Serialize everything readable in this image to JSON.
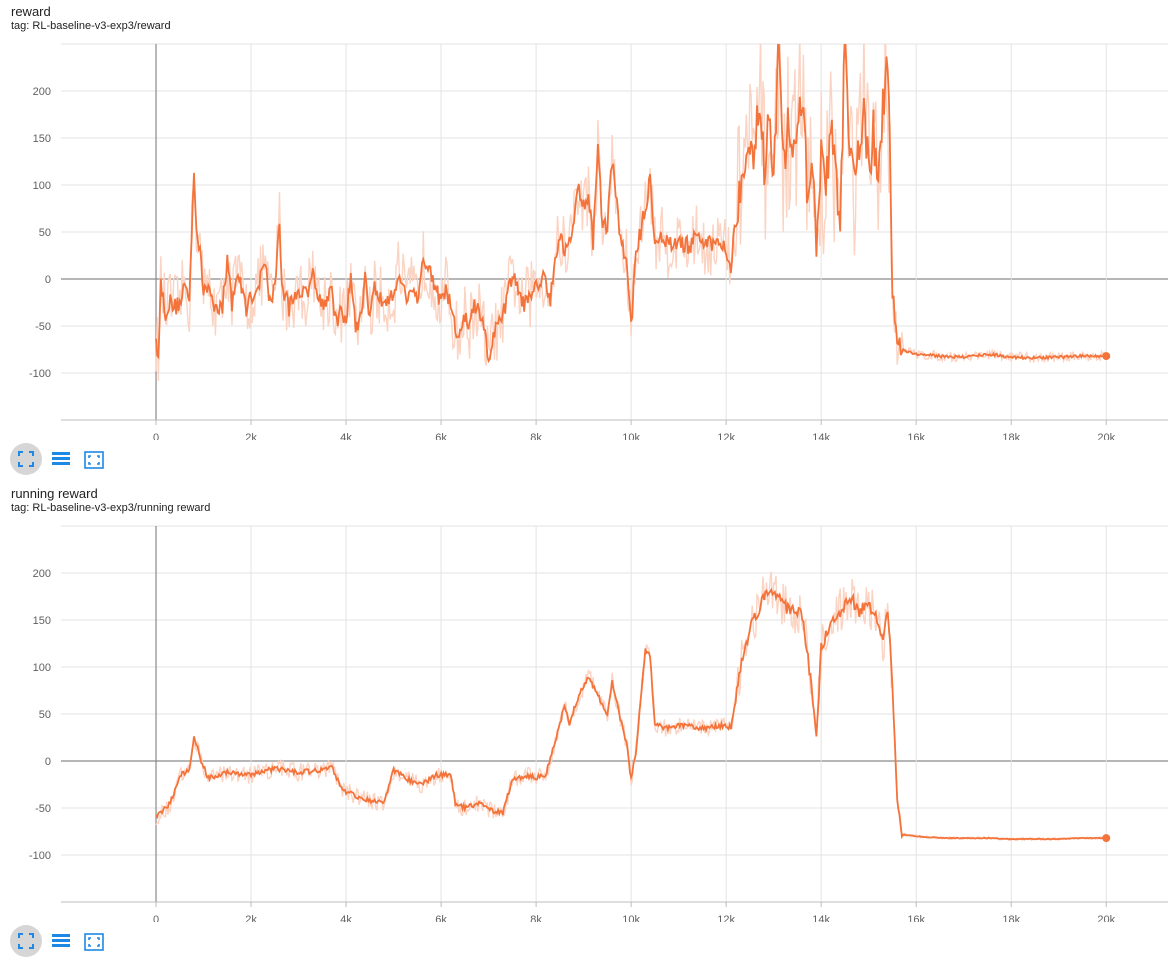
{
  "colors": {
    "accent": "#f4733a",
    "faint": "#fbd3c2",
    "grid": "#e3e3e3",
    "axis": "#9e9e9e"
  },
  "toolbar": {
    "icons": [
      "fit-domain-icon",
      "toggle-log-scale-icon",
      "expand-icon"
    ]
  },
  "chart_data": [
    {
      "type": "line",
      "title": "reward",
      "tag": "tag: RL-baseline-v3-exp3/reward",
      "xlim": [
        -2000,
        21300
      ],
      "ylim": [
        -150,
        250
      ],
      "yticks": [
        -100,
        -50,
        0,
        50,
        100,
        150,
        200
      ],
      "xticks": [
        0,
        2000,
        4000,
        6000,
        8000,
        10000,
        12000,
        14000,
        16000,
        18000,
        20000
      ],
      "xtick_labels": [
        "0",
        "2k",
        "4k",
        "6k",
        "8k",
        "10k",
        "12k",
        "14k",
        "16k",
        "18k",
        "20k"
      ],
      "grid": true,
      "noise": 22,
      "series": [
        {
          "points": [
            [
              0,
              -70
            ],
            [
              60,
              -75
            ],
            [
              100,
              -5
            ],
            [
              200,
              -35
            ],
            [
              300,
              -25
            ],
            [
              400,
              -30
            ],
            [
              500,
              -25
            ],
            [
              600,
              -5
            ],
            [
              700,
              -25
            ],
            [
              800,
              120
            ],
            [
              850,
              55
            ],
            [
              950,
              25
            ],
            [
              1000,
              -20
            ],
            [
              1100,
              -5
            ],
            [
              1200,
              -25
            ],
            [
              1400,
              -30
            ],
            [
              1500,
              20
            ],
            [
              1600,
              -25
            ],
            [
              1700,
              5
            ],
            [
              1800,
              -10
            ],
            [
              1900,
              -30
            ],
            [
              2000,
              -20
            ],
            [
              2200,
              0
            ],
            [
              2300,
              20
            ],
            [
              2400,
              -25
            ],
            [
              2500,
              -10
            ],
            [
              2600,
              65
            ],
            [
              2650,
              -10
            ],
            [
              2800,
              -30
            ],
            [
              3000,
              -10
            ],
            [
              3200,
              -20
            ],
            [
              3300,
              20
            ],
            [
              3400,
              -20
            ],
            [
              3500,
              -25
            ],
            [
              3600,
              -20
            ],
            [
              3700,
              -10
            ],
            [
              3800,
              -50
            ],
            [
              3900,
              -35
            ],
            [
              4000,
              -40
            ],
            [
              4100,
              0
            ],
            [
              4200,
              -50
            ],
            [
              4300,
              -45
            ],
            [
              4400,
              5
            ],
            [
              4500,
              -40
            ],
            [
              4600,
              -10
            ],
            [
              4700,
              -20
            ],
            [
              4800,
              -25
            ],
            [
              5000,
              -20
            ],
            [
              5100,
              10
            ],
            [
              5300,
              -25
            ],
            [
              5400,
              -5
            ],
            [
              5500,
              -25
            ],
            [
              5600,
              20
            ],
            [
              5800,
              5
            ],
            [
              5900,
              -10
            ],
            [
              6000,
              -30
            ],
            [
              6100,
              -10
            ],
            [
              6200,
              -30
            ],
            [
              6300,
              -55
            ],
            [
              6400,
              -60
            ],
            [
              6500,
              -40
            ],
            [
              6600,
              -50
            ],
            [
              6700,
              -30
            ],
            [
              6800,
              -35
            ],
            [
              6900,
              -55
            ],
            [
              7000,
              -85
            ],
            [
              7100,
              -60
            ],
            [
              7200,
              -50
            ],
            [
              7300,
              -40
            ],
            [
              7500,
              5
            ],
            [
              7600,
              -5
            ],
            [
              7700,
              -30
            ],
            [
              7800,
              -20
            ],
            [
              8000,
              -10
            ],
            [
              8100,
              0
            ],
            [
              8200,
              0
            ],
            [
              8300,
              -20
            ],
            [
              8400,
              25
            ],
            [
              8500,
              45
            ],
            [
              8600,
              30
            ],
            [
              8700,
              40
            ],
            [
              8800,
              70
            ],
            [
              8900,
              95
            ],
            [
              9000,
              80
            ],
            [
              9100,
              90
            ],
            [
              9200,
              40
            ],
            [
              9300,
              140
            ],
            [
              9400,
              55
            ],
            [
              9500,
              60
            ],
            [
              9600,
              125
            ],
            [
              9700,
              80
            ],
            [
              9800,
              35
            ],
            [
              9900,
              20
            ],
            [
              10000,
              -50
            ],
            [
              10100,
              25
            ],
            [
              10200,
              50
            ],
            [
              10300,
              75
            ],
            [
              10400,
              110
            ],
            [
              10500,
              40
            ],
            [
              10600,
              45
            ],
            [
              10800,
              35
            ],
            [
              11000,
              40
            ],
            [
              11200,
              35
            ],
            [
              11400,
              45
            ],
            [
              11600,
              35
            ],
            [
              11800,
              40
            ],
            [
              12000,
              35
            ],
            [
              12100,
              10
            ],
            [
              12200,
              65
            ],
            [
              12400,
              140
            ],
            [
              12600,
              120
            ],
            [
              12700,
              200
            ],
            [
              12800,
              110
            ],
            [
              12900,
              170
            ],
            [
              13000,
              90
            ],
            [
              13100,
              240
            ],
            [
              13200,
              120
            ],
            [
              13300,
              160
            ],
            [
              13400,
              110
            ],
            [
              13500,
              180
            ],
            [
              13600,
              200
            ],
            [
              13700,
              100
            ],
            [
              13800,
              140
            ],
            [
              13900,
              30
            ],
            [
              14000,
              130
            ],
            [
              14100,
              90
            ],
            [
              14200,
              165
            ],
            [
              14300,
              110
            ],
            [
              14400,
              60
            ],
            [
              14500,
              250
            ],
            [
              14600,
              130
            ],
            [
              14700,
              100
            ],
            [
              14800,
              140
            ],
            [
              14900,
              190
            ],
            [
              15000,
              110
            ],
            [
              15100,
              160
            ],
            [
              15200,
              90
            ],
            [
              15300,
              180
            ],
            [
              15400,
              230
            ],
            [
              15500,
              -15
            ],
            [
              15600,
              -60
            ],
            [
              15700,
              -75
            ],
            [
              16000,
              -80
            ],
            [
              16500,
              -82
            ],
            [
              17000,
              -83
            ],
            [
              17500,
              -80
            ],
            [
              18000,
              -83
            ],
            [
              18500,
              -84
            ],
            [
              19000,
              -83
            ],
            [
              19500,
              -82
            ],
            [
              20000,
              -82
            ]
          ]
        }
      ]
    },
    {
      "type": "line",
      "title": "running reward",
      "tag": "tag: RL-baseline-v3-exp3/running reward",
      "xlim": [
        -2000,
        21300
      ],
      "ylim": [
        -150,
        250
      ],
      "yticks": [
        -100,
        -50,
        0,
        50,
        100,
        150,
        200
      ],
      "xticks": [
        0,
        2000,
        4000,
        6000,
        8000,
        10000,
        12000,
        14000,
        16000,
        18000,
        20000
      ],
      "xtick_labels": [
        "0",
        "2k",
        "4k",
        "6k",
        "8k",
        "10k",
        "12k",
        "14k",
        "16k",
        "18k",
        "20k"
      ],
      "grid": true,
      "noise": 6,
      "series": [
        {
          "points": [
            [
              0,
              -60
            ],
            [
              100,
              -55
            ],
            [
              300,
              -45
            ],
            [
              500,
              -15
            ],
            [
              700,
              -10
            ],
            [
              800,
              28
            ],
            [
              950,
              0
            ],
            [
              1100,
              -18
            ],
            [
              1500,
              -12
            ],
            [
              2000,
              -15
            ],
            [
              2500,
              -8
            ],
            [
              3000,
              -12
            ],
            [
              3500,
              -10
            ],
            [
              3700,
              -5
            ],
            [
              3900,
              -30
            ],
            [
              4100,
              -35
            ],
            [
              4300,
              -40
            ],
            [
              4500,
              -42
            ],
            [
              4800,
              -45
            ],
            [
              5000,
              -10
            ],
            [
              5300,
              -20
            ],
            [
              5600,
              -25
            ],
            [
              5900,
              -15
            ],
            [
              6200,
              -15
            ],
            [
              6300,
              -45
            ],
            [
              6500,
              -50
            ],
            [
              6800,
              -45
            ],
            [
              7000,
              -52
            ],
            [
              7300,
              -55
            ],
            [
              7500,
              -20
            ],
            [
              7800,
              -15
            ],
            [
              8000,
              -18
            ],
            [
              8200,
              -15
            ],
            [
              8400,
              20
            ],
            [
              8600,
              60
            ],
            [
              8700,
              40
            ],
            [
              8900,
              70
            ],
            [
              9100,
              90
            ],
            [
              9300,
              70
            ],
            [
              9500,
              50
            ],
            [
              9600,
              85
            ],
            [
              9800,
              40
            ],
            [
              9900,
              20
            ],
            [
              10000,
              -20
            ],
            [
              10100,
              10
            ],
            [
              10300,
              120
            ],
            [
              10400,
              110
            ],
            [
              10500,
              40
            ],
            [
              10700,
              35
            ],
            [
              11000,
              38
            ],
            [
              11500,
              35
            ],
            [
              12000,
              38
            ],
            [
              12100,
              35
            ],
            [
              12300,
              100
            ],
            [
              12500,
              140
            ],
            [
              12800,
              175
            ],
            [
              13000,
              180
            ],
            [
              13200,
              165
            ],
            [
              13400,
              160
            ],
            [
              13600,
              155
            ],
            [
              13800,
              80
            ],
            [
              13900,
              25
            ],
            [
              14000,
              120
            ],
            [
              14200,
              145
            ],
            [
              14400,
              160
            ],
            [
              14600,
              175
            ],
            [
              14800,
              160
            ],
            [
              15000,
              165
            ],
            [
              15200,
              150
            ],
            [
              15300,
              125
            ],
            [
              15400,
              160
            ],
            [
              15500,
              80
            ],
            [
              15600,
              -40
            ],
            [
              15700,
              -78
            ],
            [
              16000,
              -80
            ],
            [
              16500,
              -82
            ],
            [
              17000,
              -82
            ],
            [
              17500,
              -82
            ],
            [
              18000,
              -83
            ],
            [
              18500,
              -83
            ],
            [
              19000,
              -83
            ],
            [
              19500,
              -82
            ],
            [
              20000,
              -82
            ]
          ]
        }
      ]
    }
  ]
}
